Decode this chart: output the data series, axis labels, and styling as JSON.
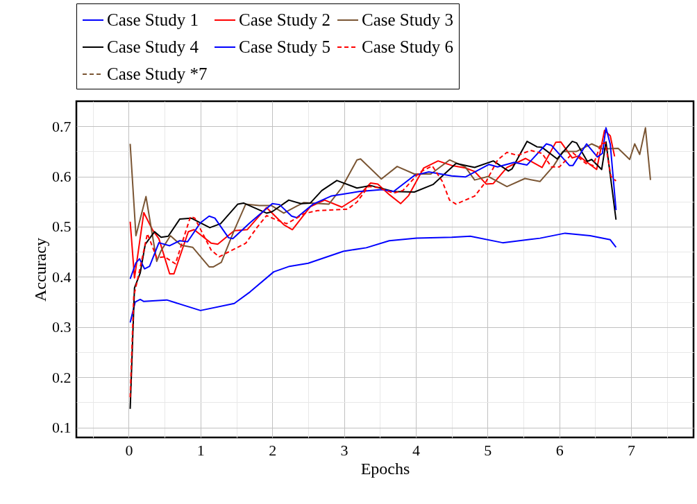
{
  "chart_data": {
    "type": "line",
    "xlabel": "Epochs",
    "ylabel": "Accuracy",
    "xlim": [
      -0.73,
      7.87
    ],
    "ylim": [
      0.08,
      0.75
    ],
    "xticks": [
      {
        "value": -0.5,
        "label": null
      },
      0,
      {
        "value": 0.5,
        "label": null
      },
      1,
      {
        "value": 1.5,
        "label": null
      },
      2,
      {
        "value": 2.5,
        "label": null
      },
      3,
      {
        "value": 3.5,
        "label": null
      },
      4,
      {
        "value": 4.5,
        "label": null
      },
      5,
      {
        "value": 5.5,
        "label": null
      },
      6,
      {
        "value": 6.5,
        "label": null
      },
      7,
      {
        "value": 7.5,
        "label": null
      }
    ],
    "yticks": [
      0.1,
      {
        "value": 0.15,
        "label": null
      },
      0.2,
      {
        "value": 0.25,
        "label": null
      },
      0.3,
      {
        "value": 0.35,
        "label": null
      },
      0.4,
      {
        "value": 0.45,
        "label": null
      },
      0.5,
      {
        "value": 0.55,
        "label": null
      },
      0.6,
      {
        "value": 0.65,
        "label": null
      },
      0.7
    ],
    "grid": true,
    "legend": "top",
    "series": [
      {
        "name": "Case Study 1",
        "color": "#0000ff",
        "line_style": "solid",
        "x": [
          0.02,
          0.09,
          0.16,
          0.21,
          0.53,
          1.0,
          1.47,
          1.69,
          2.02,
          2.24,
          2.5,
          2.99,
          3.31,
          3.63,
          4.01,
          4.5,
          4.76,
          5.21,
          5.73,
          6.08,
          6.43,
          6.71,
          6.79
        ],
        "values": [
          0.309,
          0.35,
          0.355,
          0.351,
          0.354,
          0.333,
          0.347,
          0.37,
          0.41,
          0.421,
          0.427,
          0.451,
          0.458,
          0.472,
          0.477,
          0.479,
          0.481,
          0.468,
          0.477,
          0.487,
          0.482,
          0.474,
          0.459
        ]
      },
      {
        "name": "Case Study 2",
        "color": "#ff0000",
        "line_style": "solid",
        "x": [
          0.02,
          0.08,
          0.21,
          0.33,
          0.42,
          0.57,
          0.63,
          0.83,
          0.91,
          1.15,
          1.24,
          1.47,
          1.65,
          1.92,
          2.16,
          2.28,
          2.53,
          2.73,
          2.97,
          3.18,
          3.37,
          3.47,
          3.63,
          3.79,
          3.9,
          4.11,
          4.31,
          4.5,
          4.69,
          4.82,
          4.98,
          5.08,
          5.27,
          5.53,
          5.76,
          5.95,
          6.02,
          6.18,
          6.27,
          6.52,
          6.63,
          6.71,
          6.77
        ],
        "values": [
          0.51,
          0.398,
          0.528,
          0.494,
          0.476,
          0.406,
          0.406,
          0.49,
          0.494,
          0.467,
          0.465,
          0.492,
          0.494,
          0.538,
          0.504,
          0.494,
          0.54,
          0.553,
          0.539,
          0.558,
          0.587,
          0.585,
          0.564,
          0.546,
          0.562,
          0.617,
          0.631,
          0.622,
          0.617,
          0.61,
          0.585,
          0.586,
          0.618,
          0.636,
          0.618,
          0.668,
          0.669,
          0.637,
          0.641,
          0.614,
          0.692,
          0.681,
          0.64
        ]
      },
      {
        "name": "Case Study 3",
        "color": "#7a5533",
        "line_style": "solid",
        "x": [
          0.02,
          0.1,
          0.24,
          0.39,
          0.45,
          0.58,
          0.73,
          0.89,
          1.12,
          1.18,
          1.29,
          1.47,
          1.63,
          1.82,
          1.99,
          2.16,
          2.34,
          2.44,
          2.79,
          2.97,
          3.18,
          3.23,
          3.52,
          3.74,
          3.98,
          4.21,
          4.47,
          4.69,
          4.82,
          5.01,
          5.27,
          5.52,
          5.73,
          5.92,
          6.05,
          6.24,
          6.45,
          6.6,
          6.82,
          6.98,
          7.05,
          7.12,
          7.2,
          7.27
        ],
        "values": [
          0.665,
          0.482,
          0.56,
          0.431,
          0.452,
          0.482,
          0.463,
          0.459,
          0.42,
          0.42,
          0.429,
          0.493,
          0.545,
          0.542,
          0.542,
          0.527,
          0.541,
          0.548,
          0.545,
          0.578,
          0.633,
          0.635,
          0.595,
          0.62,
          0.605,
          0.605,
          0.633,
          0.619,
          0.593,
          0.6,
          0.58,
          0.596,
          0.59,
          0.621,
          0.65,
          0.65,
          0.665,
          0.655,
          0.656,
          0.634,
          0.665,
          0.644,
          0.697,
          0.593
        ]
      },
      {
        "name": "Case Study 4",
        "color": "#000000",
        "line_style": "solid",
        "x": [
          0.02,
          0.08,
          0.16,
          0.23,
          0.36,
          0.45,
          0.55,
          0.71,
          0.87,
          1.13,
          1.28,
          1.52,
          1.6,
          1.92,
          2.0,
          2.23,
          2.4,
          2.53,
          2.69,
          2.9,
          3.18,
          3.37,
          3.69,
          3.98,
          4.24,
          4.56,
          4.82,
          5.08,
          5.29,
          5.34,
          5.55,
          5.69,
          5.76,
          5.97,
          6.18,
          6.24,
          6.39,
          6.45,
          6.59,
          6.65,
          6.79
        ],
        "values": [
          0.137,
          0.378,
          0.408,
          0.465,
          0.49,
          0.479,
          0.481,
          0.515,
          0.517,
          0.498,
          0.506,
          0.545,
          0.547,
          0.527,
          0.53,
          0.553,
          0.546,
          0.547,
          0.572,
          0.592,
          0.577,
          0.582,
          0.57,
          0.569,
          0.584,
          0.626,
          0.618,
          0.631,
          0.611,
          0.615,
          0.67,
          0.659,
          0.658,
          0.635,
          0.67,
          0.667,
          0.63,
          0.634,
          0.614,
          0.669,
          0.514
        ]
      },
      {
        "name": "Case Study 5",
        "color": "#0000ff",
        "line_style": "solid",
        "x": [
          0.02,
          0.1,
          0.15,
          0.22,
          0.29,
          0.42,
          0.57,
          0.71,
          0.82,
          1.0,
          1.12,
          1.2,
          1.39,
          1.45,
          1.69,
          2.0,
          2.1,
          2.27,
          2.34,
          2.57,
          2.82,
          3.21,
          3.53,
          3.69,
          3.98,
          4.18,
          4.5,
          4.69,
          5.02,
          5.14,
          5.37,
          5.55,
          5.82,
          5.89,
          6.14,
          6.19,
          6.38,
          6.53,
          6.6,
          6.65,
          6.71,
          6.79
        ],
        "values": [
          0.396,
          0.428,
          0.436,
          0.416,
          0.421,
          0.468,
          0.462,
          0.472,
          0.47,
          0.508,
          0.521,
          0.517,
          0.478,
          0.476,
          0.508,
          0.546,
          0.544,
          0.521,
          0.518,
          0.545,
          0.561,
          0.57,
          0.574,
          0.57,
          0.602,
          0.609,
          0.601,
          0.599,
          0.624,
          0.619,
          0.628,
          0.623,
          0.665,
          0.662,
          0.622,
          0.622,
          0.665,
          0.639,
          0.646,
          0.697,
          0.664,
          0.533
        ]
      },
      {
        "name": "Case Study 6",
        "color": "#ff0000",
        "line_style": "dashed",
        "x": [
          0.02,
          0.07,
          0.13,
          0.26,
          0.39,
          0.5,
          0.65,
          0.86,
          0.92,
          1.15,
          1.26,
          1.63,
          1.79,
          1.92,
          2.07,
          2.2,
          2.34,
          2.44,
          2.63,
          3.05,
          3.18,
          3.34,
          3.47,
          3.69,
          3.82,
          4.05,
          4.23,
          4.37,
          4.47,
          4.56,
          4.82,
          4.98,
          5.14,
          5.27,
          5.42,
          5.6,
          5.76,
          5.89,
          6.0,
          6.19,
          6.37,
          6.47,
          6.58,
          6.64,
          6.72,
          6.79
        ],
        "values": [
          0.16,
          0.362,
          0.399,
          0.486,
          0.438,
          0.44,
          0.426,
          0.52,
          0.517,
          0.453,
          0.44,
          0.467,
          0.499,
          0.522,
          0.513,
          0.506,
          0.517,
          0.526,
          0.532,
          0.535,
          0.549,
          0.58,
          0.578,
          0.567,
          0.572,
          0.608,
          0.621,
          0.59,
          0.553,
          0.545,
          0.561,
          0.59,
          0.633,
          0.648,
          0.642,
          0.652,
          0.646,
          0.619,
          0.619,
          0.647,
          0.626,
          0.622,
          0.665,
          0.667,
          0.6,
          0.591
        ]
      },
      {
        "name": "Case Study *7",
        "color": "#7a5533",
        "line_style": "dashed"
      }
    ]
  }
}
